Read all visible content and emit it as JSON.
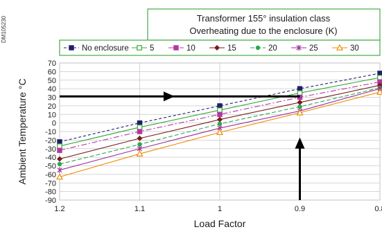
{
  "figure_code": "DM105230",
  "chart_data": {
    "type": "line",
    "title": "Transformer 155° insulation class",
    "subtitle": "Overheating due to the enclosure (K)",
    "xlabel": "Load Factor",
    "ylabel": "Ambient Temperature °C",
    "x": [
      1.2,
      1.1,
      1,
      0.9,
      0.8
    ],
    "x_tick_labels": [
      "1.2",
      "1.1",
      "1",
      "0.9",
      "0.8"
    ],
    "x_reversed": true,
    "ylim": [
      -90,
      70
    ],
    "y_ticks": [
      70,
      60,
      50,
      40,
      30,
      20,
      10,
      0,
      -10,
      -20,
      -30,
      -40,
      -50,
      -60,
      -70,
      -80,
      -90
    ],
    "grid": true,
    "legend_position": "top",
    "series": [
      {
        "name": "No enclosure",
        "color": "#1f1f6b",
        "marker": "square-filled",
        "dash": "4,3",
        "values": [
          -22,
          0,
          20,
          40,
          58
        ]
      },
      {
        "name": "5",
        "color": "#33aa33",
        "marker": "square-open",
        "dash": "",
        "values": [
          -27,
          -5,
          15,
          35,
          53
        ]
      },
      {
        "name": "10",
        "color": "#b0389e",
        "marker": "square-filled",
        "dash": "8,3,2,3",
        "values": [
          -32,
          -10,
          10,
          30,
          48
        ]
      },
      {
        "name": "15",
        "color": "#7a1a1a",
        "marker": "diamond-filled",
        "dash": "",
        "values": [
          -42,
          -18,
          4,
          24,
          44
        ]
      },
      {
        "name": "20",
        "color": "#2aa84a",
        "marker": "circle-filled",
        "dash": "6,3",
        "values": [
          -48,
          -25,
          -1,
          19,
          41
        ]
      },
      {
        "name": "25",
        "color": "#9b2f9b",
        "marker": "star",
        "dash": "",
        "values": [
          -55,
          -30,
          -6,
          14,
          40
        ]
      },
      {
        "name": "30",
        "color": "#f08a00",
        "marker": "triangle-open",
        "dash": "",
        "values": [
          -63,
          -36,
          -11,
          12,
          36
        ]
      }
    ],
    "annotations": [
      {
        "type": "arrow",
        "from": [
          0.9,
          -90
        ],
        "to": [
          0.9,
          -25
        ]
      },
      {
        "type": "arrow",
        "from": [
          1.2,
          31
        ],
        "to": [
          0.9,
          31
        ]
      }
    ]
  }
}
